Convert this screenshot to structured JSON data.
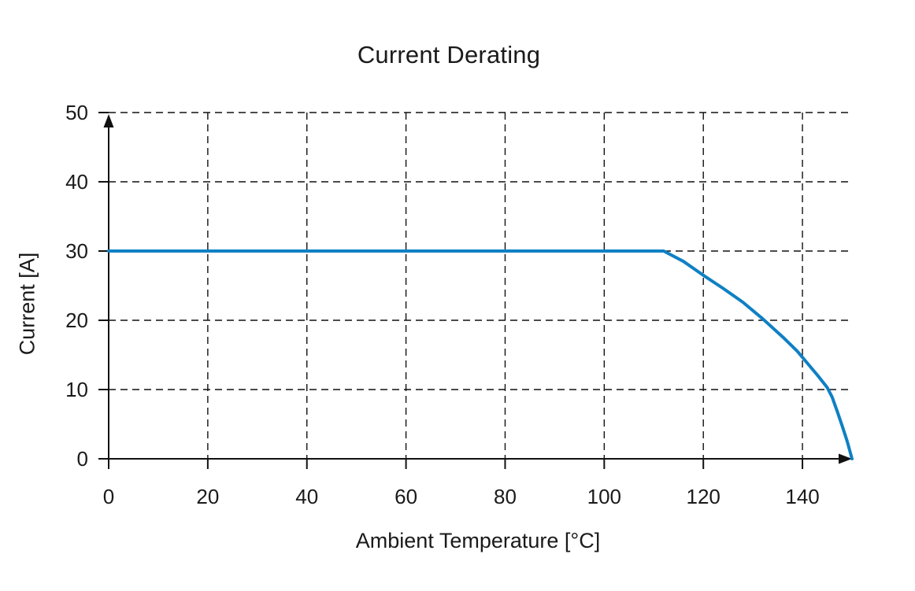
{
  "chart_data": {
    "type": "line",
    "title": "Current Derating",
    "xlabel": "Ambient Temperature [°C]",
    "ylabel": "Current [A]",
    "xlim": [
      0,
      150
    ],
    "ylim": [
      0,
      50
    ],
    "x_ticks": [
      0,
      20,
      40,
      60,
      80,
      100,
      120,
      140
    ],
    "y_ticks": [
      0,
      10,
      20,
      30,
      40,
      50
    ],
    "grid": "dashed-black-both-axes",
    "legend": "none",
    "axis_style": "arrow-tipped-solid-axes",
    "colors": {
      "series": "#0F80C4",
      "grid": "#111111",
      "text": "#1a1a1a",
      "background": "#ffffff"
    },
    "series": [
      {
        "color": "#0F80C4",
        "points": [
          [
            0,
            30
          ],
          [
            112,
            30
          ],
          [
            116,
            28.5
          ],
          [
            120,
            26.5
          ],
          [
            124,
            24.6
          ],
          [
            128,
            22.6
          ],
          [
            132,
            20.2
          ],
          [
            136,
            17.6
          ],
          [
            139,
            15.5
          ],
          [
            141,
            13.8
          ],
          [
            143,
            12.1
          ],
          [
            145,
            10.3
          ],
          [
            146,
            8.9
          ],
          [
            147,
            6.9
          ],
          [
            148,
            4.8
          ],
          [
            149,
            2.6
          ],
          [
            150,
            0
          ]
        ]
      }
    ]
  }
}
